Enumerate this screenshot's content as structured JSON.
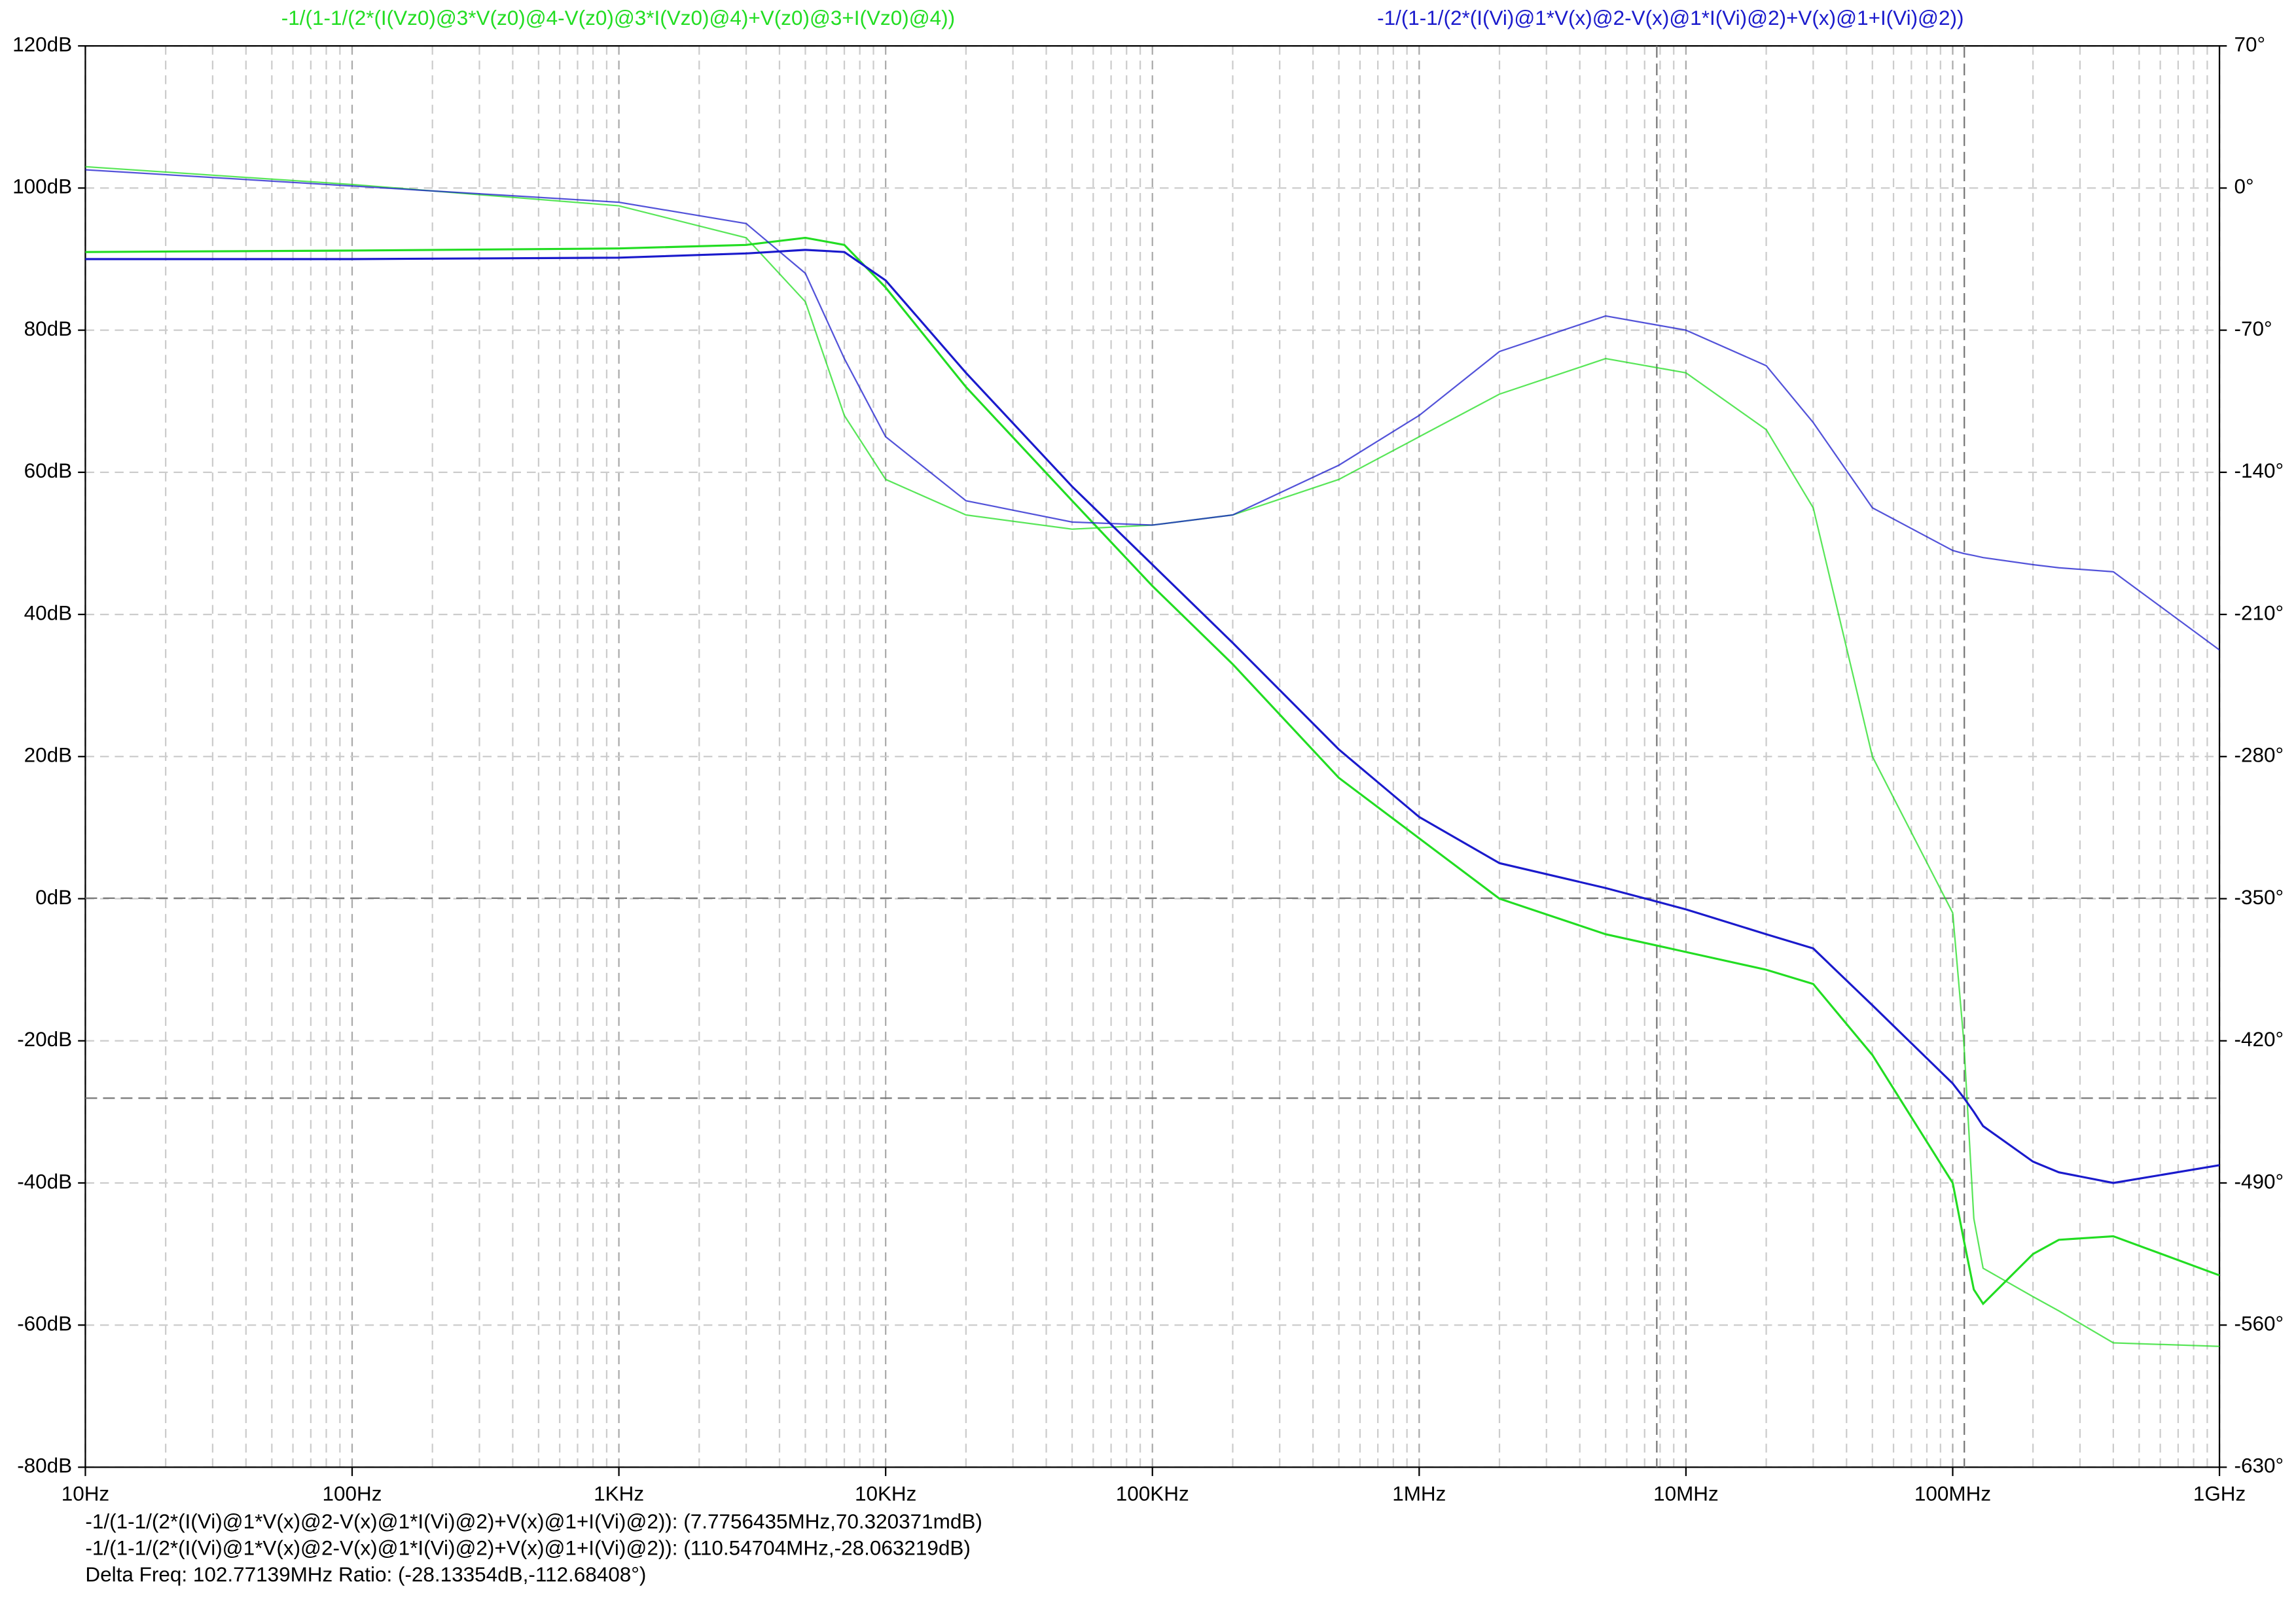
{
  "chart_data": {
    "type": "line",
    "log_x": true,
    "grid": true,
    "x": [
      10,
      100,
      1000,
      3000,
      5000,
      7000,
      10000,
      20000,
      50000,
      100000,
      200000,
      500000,
      1000000,
      2000000,
      5000000,
      10000000,
      20000000,
      30000000,
      50000000,
      100000000,
      110000000,
      120000000,
      130000000,
      200000000,
      250000000,
      400000000,
      1000000000
    ],
    "series": [
      {
        "name": "-1/(1-1/(2*(I(Vz0)@3*V(z0)@4-V(z0)@3*I(Vz0)@4)+V(z0)@3+I(Vz0)@4))",
        "color": "#22dd22",
        "values": [
          91,
          91.2,
          91.5,
          92,
          93,
          92,
          86,
          72,
          56,
          44,
          33,
          17,
          8.5,
          0,
          -5,
          -7.5,
          -10,
          -12,
          -22,
          -40,
          -48,
          -55,
          -57,
          -50,
          -48,
          -47.5,
          -53
        ],
        "phase": [
          10.5,
          1.75,
          -8.75,
          -24.5,
          -56,
          -112,
          -143.5,
          -161,
          -168,
          -166,
          -161,
          -143.5,
          -122.5,
          -101.5,
          -84,
          -91,
          -119,
          -157.5,
          -280,
          -357,
          -420,
          -507.5,
          -532,
          -546,
          -553,
          -568.75,
          -570.5
        ]
      },
      {
        "name": "-1/(1-1/(2*(I(Vi)@1*V(x)@2-V(x)@1*I(Vi)@2)+V(x)@1+I(Vi)@2))",
        "color": "#1a1acc",
        "values": [
          90,
          90,
          90.2,
          90.8,
          91.3,
          91,
          87,
          74,
          58,
          47,
          36,
          21,
          11.5,
          5,
          1.5,
          -1.5,
          -5,
          -7,
          -15,
          -26,
          -28,
          -30,
          -32,
          -37,
          -38.5,
          -40,
          -37.5
        ],
        "phase": [
          9,
          1,
          -7,
          -17.5,
          -42,
          -84,
          -122.5,
          -154,
          -164.5,
          -166,
          -161,
          -136.5,
          -112,
          -80.5,
          -63,
          -70,
          -87.5,
          -115.5,
          -157.5,
          -178.5,
          -180,
          -181,
          -182,
          -185.5,
          -187,
          -189,
          -227.5
        ]
      }
    ],
    "xlim": [
      10,
      1000000000
    ],
    "xticks": [
      {
        "value": 10,
        "label": "10Hz"
      },
      {
        "value": 100,
        "label": "100Hz"
      },
      {
        "value": 1000,
        "label": "1KHz"
      },
      {
        "value": 10000,
        "label": "10KHz"
      },
      {
        "value": 100000,
        "label": "100KHz"
      },
      {
        "value": 1000000,
        "label": "1MHz"
      },
      {
        "value": 10000000,
        "label": "10MHz"
      },
      {
        "value": 100000000,
        "label": "100MHz"
      },
      {
        "value": 1000000000,
        "label": "1GHz"
      }
    ],
    "ylim": [
      -80,
      120
    ],
    "yticks": [
      {
        "value": 120,
        "label": "120dB"
      },
      {
        "value": 100,
        "label": "100dB"
      },
      {
        "value": 80,
        "label": "80dB"
      },
      {
        "value": 60,
        "label": "60dB"
      },
      {
        "value": 40,
        "label": "40dB"
      },
      {
        "value": 20,
        "label": "20dB"
      },
      {
        "value": 0,
        "label": "0dB"
      },
      {
        "value": -20,
        "label": "-20dB"
      },
      {
        "value": -40,
        "label": "-40dB"
      },
      {
        "value": -60,
        "label": "-60dB"
      },
      {
        "value": -80,
        "label": "-80dB"
      }
    ],
    "y2lim": [
      -630,
      70
    ],
    "y2ticks": [
      {
        "value": 70,
        "label": "70°"
      },
      {
        "value": 0,
        "label": "0°"
      },
      {
        "value": -70,
        "label": "-70°"
      },
      {
        "value": -140,
        "label": "-140°"
      },
      {
        "value": -210,
        "label": "-210°"
      },
      {
        "value": -280,
        "label": "-280°"
      },
      {
        "value": -350,
        "label": "-350°"
      },
      {
        "value": -420,
        "label": "-420°"
      },
      {
        "value": -490,
        "label": "-490°"
      },
      {
        "value": -560,
        "label": "-560°"
      },
      {
        "value": -630,
        "label": "-630°"
      }
    ],
    "cursors": [
      {
        "x": 7775643.5,
        "y": 0.070320371
      },
      {
        "x": 110547040,
        "y": -28.063219
      }
    ],
    "cursor_readouts": [
      "-1/(1-1/(2*(I(Vi)@1*V(x)@2-V(x)@1*I(Vi)@2)+V(x)@1+I(Vi)@2)): (7.7756435MHz,70.320371mdB)",
      "-1/(1-1/(2*(I(Vi)@1*V(x)@2-V(x)@1*I(Vi)@2)+V(x)@1+I(Vi)@2)): (110.54704MHz,-28.063219dB)",
      "Delta Freq: 102.77139MHz Ratio: (-28.13354dB,-112.68408°)"
    ]
  }
}
